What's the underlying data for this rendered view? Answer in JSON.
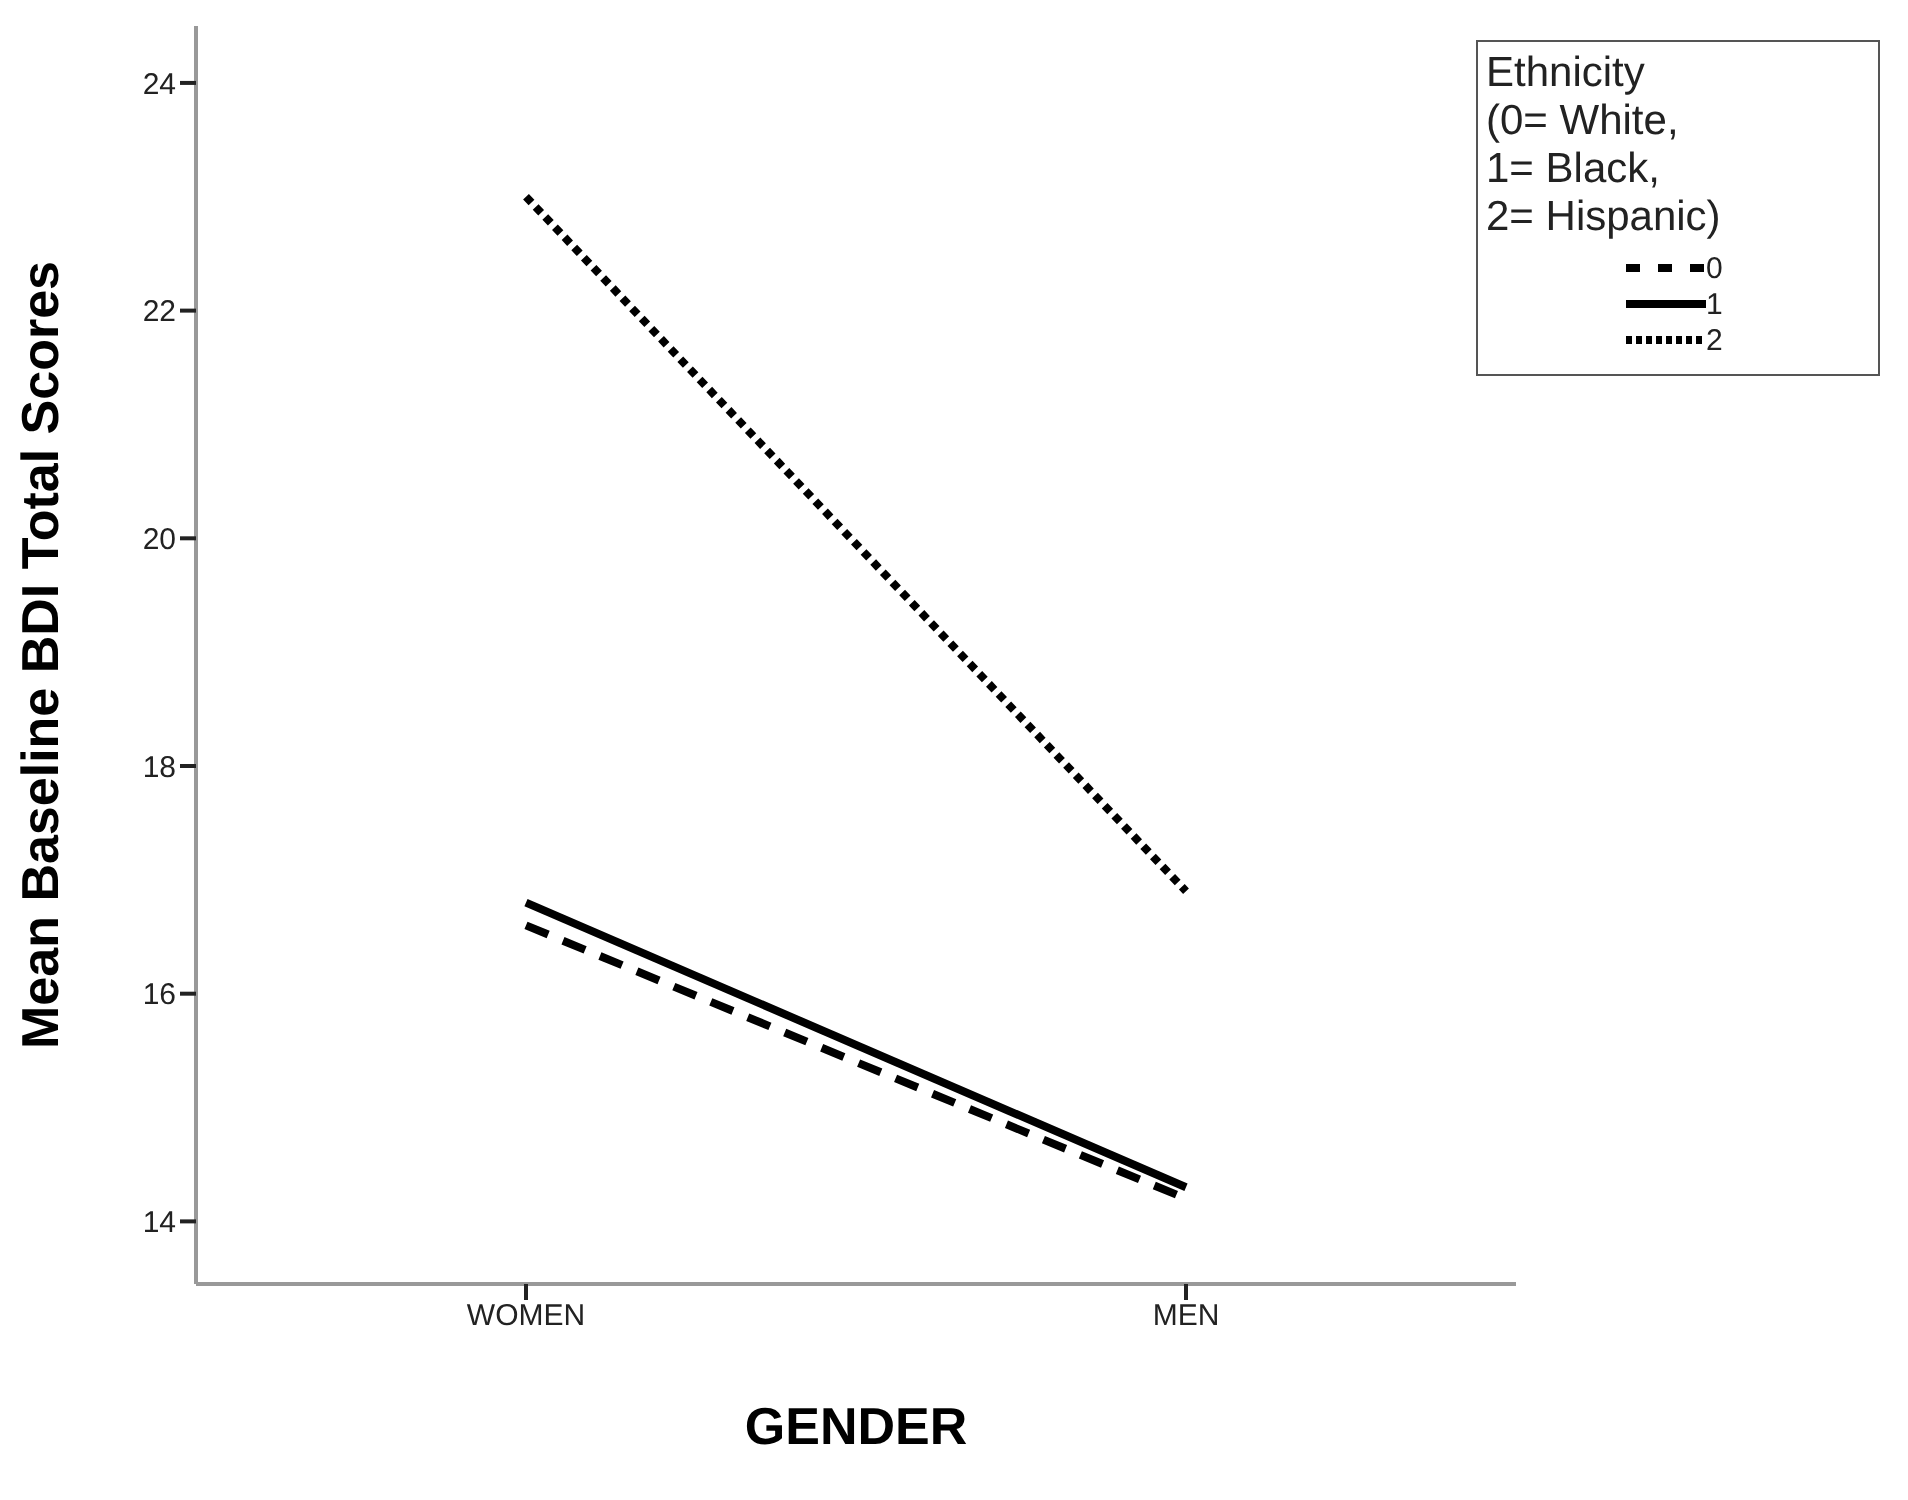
{
  "chart_data": {
    "type": "line",
    "xlabel": "GENDER",
    "ylabel": "Mean Baseline BDI Total Scores",
    "legend_title": "Ethnicity\n(0= White,\n1= Black,\n2= Hispanic)",
    "categories": [
      "WOMEN",
      "MEN"
    ],
    "series": [
      {
        "name": "0",
        "color": "#000000",
        "values": [
          16.6,
          14.2
        ],
        "line_style": "dashed"
      },
      {
        "name": "1",
        "color": "#000000",
        "values": [
          16.8,
          14.3
        ],
        "line_style": "solid"
      },
      {
        "name": "2",
        "color": "#000000",
        "values": [
          23.0,
          16.9
        ],
        "line_style": "dotted"
      }
    ],
    "ylim": [
      13.45,
      24.5
    ],
    "yticks": [
      14,
      16,
      18,
      20,
      22,
      24
    ],
    "grid": false,
    "legend": "top right",
    "marker": "none"
  }
}
